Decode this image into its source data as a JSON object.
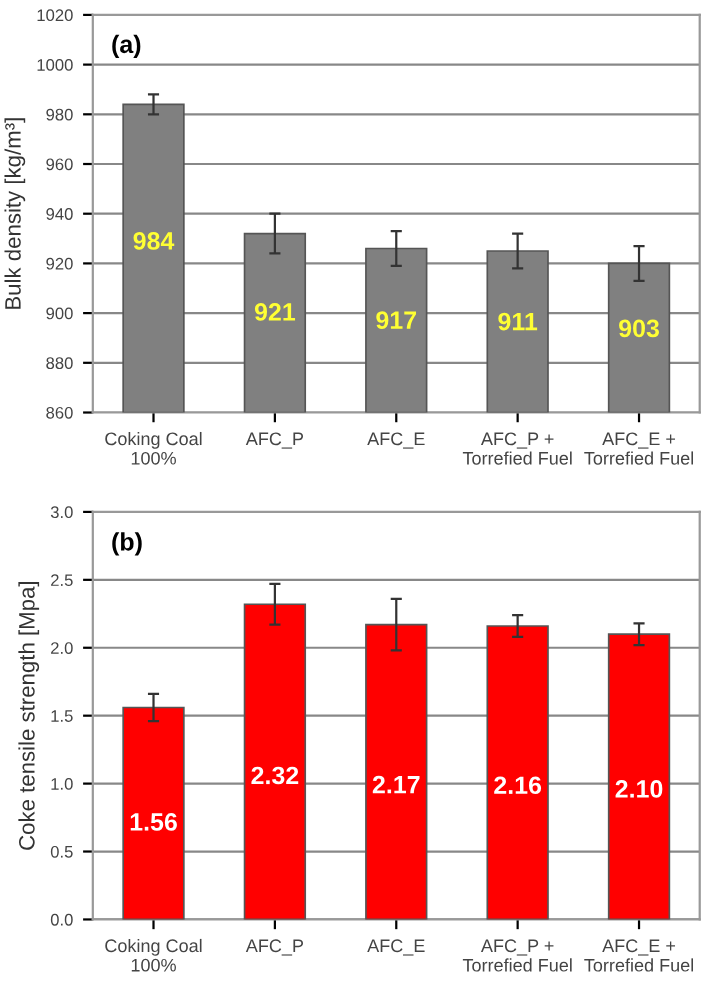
{
  "chart_data": [
    {
      "type": "bar",
      "title": "(a)",
      "ylabel": "Bulk density [kg/m³]",
      "categories": [
        "Coking Coal\n100%",
        "AFC_P",
        "AFC_E",
        "AFC_P +\nTorrefied Fuel",
        "AFC_E +\nTorrefied Fuel"
      ],
      "series": [
        {
          "color": "#808080",
          "values": [
            984,
            932,
            926,
            925,
            920
          ],
          "errors": [
            4,
            8,
            7,
            7,
            7
          ]
        }
      ],
      "annotations": [
        "984",
        "921",
        "917",
        "911",
        "903"
      ],
      "ylim": [
        860,
        1020
      ],
      "yticks": [
        860,
        880,
        900,
        920,
        940,
        960,
        980,
        1000,
        1020
      ],
      "grid": "y"
    },
    {
      "type": "bar",
      "title": "(b)",
      "ylabel": "Coke tensile strength [Mpa]",
      "categories": [
        "Coking Coal\n100%",
        "AFC_P",
        "AFC_E",
        "AFC_P +\nTorrefied Fuel",
        "AFC_E +\nTorrefied Fuel"
      ],
      "series": [
        {
          "color": "#ff0000",
          "values": [
            1.56,
            2.32,
            2.17,
            2.16,
            2.1
          ],
          "errors": [
            0.1,
            0.15,
            0.19,
            0.08,
            0.08
          ],
          "value_labels": [
            "1.56",
            "2.32",
            "2.17",
            "2.16",
            "2.10"
          ]
        }
      ],
      "ylim": [
        0,
        3.0
      ],
      "yticks": [
        {
          "value": 0,
          "label": "0.0"
        },
        {
          "value": 0.5,
          "label": "0.5"
        },
        {
          "value": 1.0,
          "label": "1.0"
        },
        {
          "value": 1.5,
          "label": "1.5"
        },
        {
          "value": 2.0,
          "label": "2.0"
        },
        {
          "value": 2.5,
          "label": "2.5"
        },
        {
          "value": 3.0,
          "label": "3.0"
        }
      ],
      "grid": "y"
    }
  ]
}
